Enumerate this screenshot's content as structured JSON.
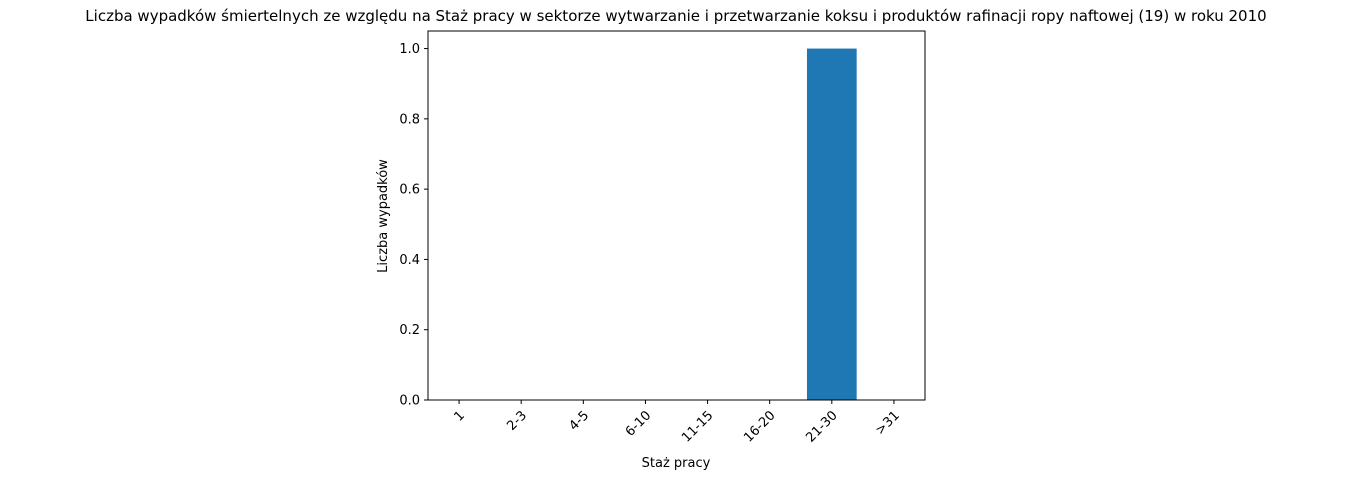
{
  "chart_data": {
    "type": "bar",
    "title": "Liczba wypadków śmiertelnych ze względu na Staż pracy w sektorze wytwarzanie i przetwarzanie koksu i produktów rafinacji ropy naftowej  (19)   w roku 2010",
    "xlabel": "Staż pracy",
    "ylabel": "Liczba wypadków",
    "categories": [
      "1",
      "2-3",
      "4-5",
      "6-10",
      "11-15",
      "16-20",
      "21-30",
      ">31"
    ],
    "values": [
      0,
      0,
      0,
      0,
      0,
      0,
      1,
      0
    ],
    "ylim": [
      0,
      1.05
    ],
    "yticks": [
      0.0,
      0.2,
      0.4,
      0.6,
      0.8,
      1.0
    ],
    "ytick_labels": [
      "0.0",
      "0.2",
      "0.4",
      "0.6",
      "0.8",
      "1.0"
    ],
    "bar_color": "#1f77b4",
    "grid": false,
    "legend": "none"
  }
}
